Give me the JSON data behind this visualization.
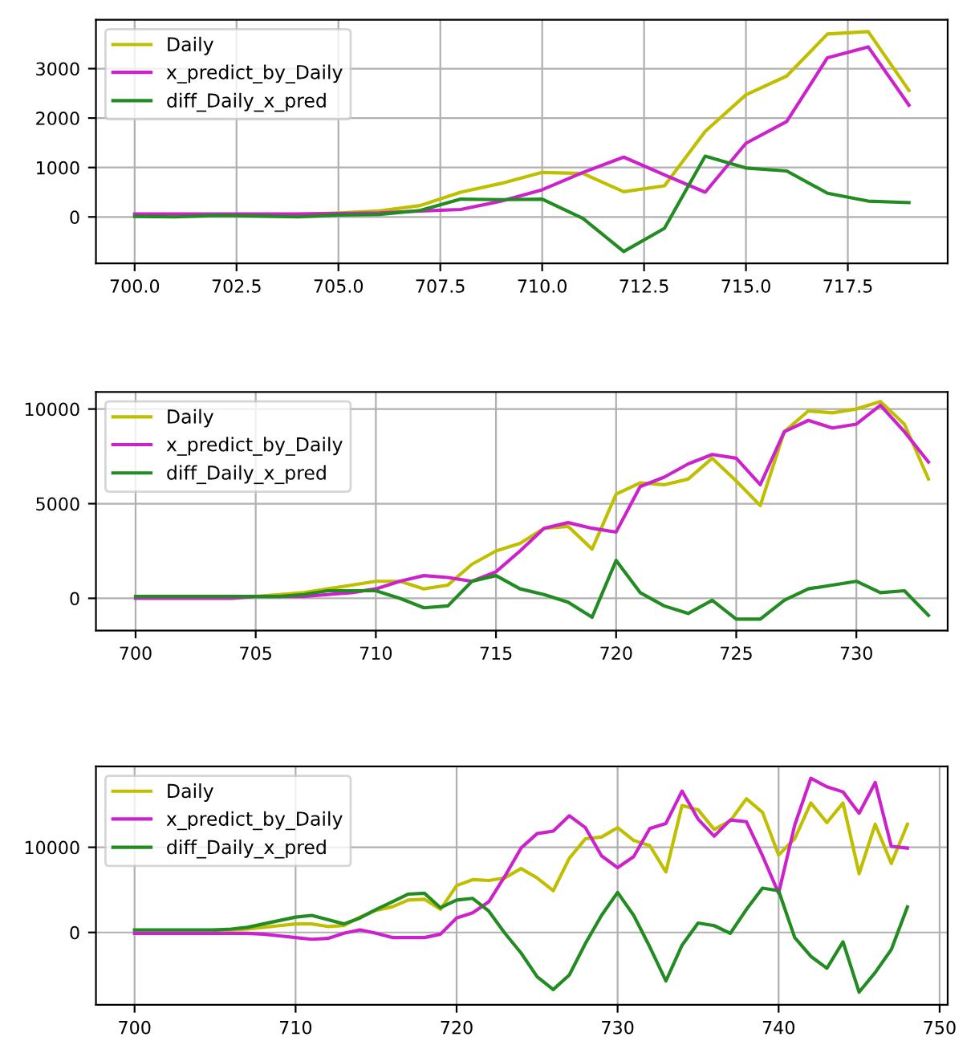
{
  "chart_data": [
    {
      "type": "line",
      "legend": "top left",
      "grid": true,
      "x": [
        700,
        701,
        702,
        703,
        704,
        705,
        706,
        707,
        708,
        709,
        710,
        711,
        712,
        713,
        714,
        715,
        716,
        717,
        718,
        719
      ],
      "xlim": [
        699.05,
        719.95
      ],
      "xticks": [
        {
          "value": 700,
          "label": "700.0"
        },
        {
          "value": 702.5,
          "label": "702.5"
        },
        {
          "value": 705,
          "label": "705.0"
        },
        {
          "value": 707.5,
          "label": "707.5"
        },
        {
          "value": 710,
          "label": "710.0"
        },
        {
          "value": 712.5,
          "label": "712.5"
        },
        {
          "value": 715,
          "label": "715.0"
        },
        {
          "value": 717.5,
          "label": "717.5"
        }
      ],
      "ylim": [
        -940,
        3990
      ],
      "yticks": [
        0,
        1000,
        2000,
        3000
      ],
      "series": [
        {
          "name": "Daily",
          "color": "#bfbf00",
          "values": [
            null,
            null,
            null,
            null,
            50,
            80,
            120,
            230,
            500,
            680,
            900,
            880,
            510,
            630,
            1730,
            2470,
            2850,
            3700,
            3750,
            2560
          ]
        },
        {
          "name": "x_predict_by_Daily",
          "color": "#cc22cc",
          "values": [
            60,
            60,
            60,
            60,
            60,
            70,
            80,
            120,
            150,
            320,
            550,
            900,
            1210,
            850,
            500,
            1490,
            1930,
            3220,
            3440,
            2260
          ]
        },
        {
          "name": "diff_Daily_x_pred",
          "color": "#228b22",
          "values": [
            10,
            0,
            30,
            20,
            0,
            40,
            50,
            130,
            360,
            350,
            360,
            -30,
            -700,
            -230,
            1230,
            990,
            930,
            480,
            320,
            290
          ]
        }
      ]
    },
    {
      "type": "line",
      "legend": "top left",
      "grid": true,
      "x": [
        700,
        701,
        702,
        703,
        704,
        705,
        706,
        707,
        708,
        709,
        710,
        711,
        712,
        713,
        714,
        715,
        716,
        717,
        718,
        719,
        720,
        721,
        722,
        723,
        724,
        725,
        726,
        727,
        728,
        729,
        730,
        731,
        732,
        733
      ],
      "xlim": [
        698.35,
        733.8
      ],
      "xticks": [
        700,
        705,
        710,
        715,
        720,
        725,
        730
      ],
      "ylim": [
        -1700,
        10900
      ],
      "yticks": [
        0,
        5000,
        10000
      ],
      "series": [
        {
          "name": "Daily",
          "color": "#bfbf00",
          "values": [
            null,
            null,
            null,
            null,
            null,
            100,
            200,
            300,
            500,
            700,
            900,
            900,
            500,
            700,
            1800,
            2500,
            2900,
            3700,
            3800,
            2600,
            5500,
            6100,
            6000,
            6300,
            7400,
            6200,
            4900,
            8800,
            9900,
            9800,
            10000,
            10400,
            9200,
            6300
          ]
        },
        {
          "name": "x_predict_by_Daily",
          "color": "#cc22cc",
          "values": [
            0,
            0,
            0,
            0,
            0,
            100,
            100,
            100,
            200,
            300,
            500,
            900,
            1200,
            1100,
            900,
            1400,
            2500,
            3700,
            4000,
            3700,
            3500,
            5900,
            6400,
            7100,
            7600,
            7400,
            6000,
            8800,
            9400,
            9000,
            9200,
            10200,
            8800,
            7200
          ]
        },
        {
          "name": "diff_Daily_x_pred",
          "color": "#228b22",
          "values": [
            100,
            100,
            100,
            100,
            100,
            100,
            100,
            200,
            400,
            400,
            400,
            0,
            -500,
            -400,
            900,
            1200,
            500,
            200,
            -200,
            -1000,
            2000,
            300,
            -400,
            -800,
            -100,
            -1100,
            -1100,
            -100,
            500,
            700,
            900,
            300,
            400,
            -900
          ]
        }
      ]
    },
    {
      "type": "line",
      "legend": "top left",
      "grid": true,
      "x": [
        700,
        701,
        702,
        703,
        704,
        705,
        706,
        707,
        708,
        709,
        710,
        711,
        712,
        713,
        714,
        715,
        716,
        717,
        718,
        719,
        720,
        721,
        722,
        723,
        724,
        725,
        726,
        727,
        728,
        729,
        730,
        731,
        732,
        733,
        734,
        735,
        736,
        737,
        738,
        739,
        740,
        741,
        742,
        743,
        744,
        745,
        746,
        747,
        748
      ],
      "xlim": [
        697.6,
        750.5
      ],
      "xticks": [
        700,
        710,
        720,
        730,
        740,
        750
      ],
      "ylim": [
        -8500,
        19500
      ],
      "yticks": [
        0,
        10000
      ],
      "series": [
        {
          "name": "Daily",
          "color": "#bfbf00",
          "values": [
            null,
            null,
            null,
            null,
            null,
            300,
            300,
            400,
            600,
            800,
            1000,
            1000,
            700,
            800,
            1800,
            2600,
            3000,
            3800,
            3900,
            2700,
            5500,
            6200,
            6100,
            6400,
            7500,
            6400,
            4900,
            8700,
            11000,
            11200,
            12300,
            10800,
            10200,
            7100,
            14900,
            14400,
            12100,
            13100,
            15700,
            14100,
            9100,
            11000,
            15200,
            12900,
            15200,
            6900,
            12700,
            8100,
            12700
          ]
        },
        {
          "name": "x_predict_by_Daily",
          "color": "#cc22cc",
          "values": [
            -100,
            -100,
            -100,
            -100,
            -100,
            -100,
            -100,
            -100,
            -200,
            -400,
            -600,
            -800,
            -700,
            -100,
            300,
            -100,
            -600,
            -600,
            -600,
            -200,
            1700,
            2300,
            3600,
            6600,
            9900,
            11600,
            11900,
            13700,
            12300,
            9000,
            7600,
            8900,
            12200,
            12800,
            16600,
            13300,
            11300,
            13200,
            13000,
            9000,
            4600,
            12600,
            18100,
            17100,
            16500,
            14000,
            17600,
            10100,
            9900
          ]
        },
        {
          "name": "diff_Daily_x_pred",
          "color": "#228b22",
          "values": [
            300,
            300,
            300,
            300,
            300,
            300,
            400,
            600,
            1000,
            1400,
            1800,
            2000,
            1500,
            1000,
            1700,
            2700,
            3600,
            4500,
            4600,
            2900,
            3800,
            4000,
            2500,
            -100,
            -2400,
            -5200,
            -6700,
            -5000,
            -1300,
            2000,
            4700,
            2000,
            -1700,
            -5700,
            -1500,
            1100,
            800,
            -100,
            2700,
            5200,
            4900,
            -600,
            -2800,
            -4200,
            -1100,
            -7000,
            -4700,
            -2000,
            3000
          ]
        }
      ]
    }
  ]
}
